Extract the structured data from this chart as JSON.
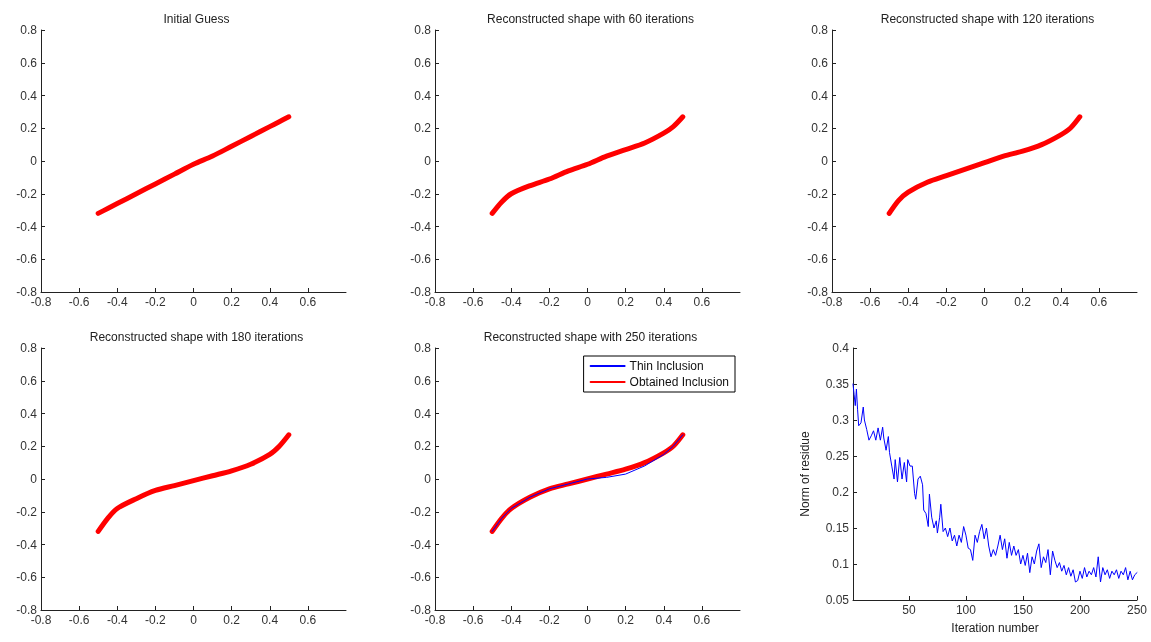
{
  "chart_data": [
    {
      "type": "line",
      "title": "Initial Guess",
      "xlim": [
        -0.8,
        0.8
      ],
      "xticks": [
        -0.8,
        -0.6,
        -0.4,
        -0.2,
        0,
        0.2,
        0.4,
        0.6
      ],
      "ylim": [
        -0.8,
        0.8
      ],
      "yticks": [
        -0.8,
        -0.6,
        -0.4,
        -0.2,
        0,
        0.2,
        0.4,
        0.6,
        0.8
      ],
      "marker": "none",
      "grid": false,
      "legend": false,
      "x": [
        -0.5,
        -0.45,
        -0.4,
        -0.3,
        -0.2,
        -0.1,
        0,
        0.1,
        0.2,
        0.3,
        0.4,
        0.45,
        0.5
      ],
      "series": [
        {
          "color": "#ff0000",
          "values": [
            -0.32,
            -0.29,
            -0.26,
            -0.2,
            -0.14,
            -0.08,
            -0.02,
            0.03,
            0.09,
            0.15,
            0.21,
            0.24,
            0.27
          ]
        }
      ]
    },
    {
      "type": "line",
      "title": "Reconstructed shape with 60 iterations",
      "xlim": [
        -0.8,
        0.8
      ],
      "xticks": [
        -0.8,
        -0.6,
        -0.4,
        -0.2,
        0,
        0.2,
        0.4,
        0.6
      ],
      "ylim": [
        -0.8,
        0.8
      ],
      "yticks": [
        -0.8,
        -0.6,
        -0.4,
        -0.2,
        0,
        0.2,
        0.4,
        0.6,
        0.8
      ],
      "marker": "none",
      "grid": false,
      "legend": false,
      "x": [
        -0.5,
        -0.45,
        -0.4,
        -0.3,
        -0.2,
        -0.1,
        0,
        0.1,
        0.2,
        0.3,
        0.4,
        0.45,
        0.5
      ],
      "series": [
        {
          "color": "#ff0000",
          "values": [
            -0.32,
            -0.25,
            -0.2,
            -0.15,
            -0.11,
            -0.06,
            -0.02,
            0.03,
            0.07,
            0.11,
            0.17,
            0.21,
            0.27
          ]
        }
      ]
    },
    {
      "type": "line",
      "title": "Reconstructed shape with 120 iterations",
      "xlim": [
        -0.8,
        0.8
      ],
      "xticks": [
        -0.8,
        -0.6,
        -0.4,
        -0.2,
        0,
        0.2,
        0.4,
        0.6
      ],
      "ylim": [
        -0.8,
        0.8
      ],
      "yticks": [
        -0.8,
        -0.6,
        -0.4,
        -0.2,
        0,
        0.2,
        0.4,
        0.6,
        0.8
      ],
      "marker": "none",
      "grid": false,
      "legend": false,
      "x": [
        -0.5,
        -0.45,
        -0.4,
        -0.3,
        -0.2,
        -0.1,
        0,
        0.1,
        0.2,
        0.3,
        0.4,
        0.45,
        0.5
      ],
      "series": [
        {
          "color": "#ff0000",
          "values": [
            -0.32,
            -0.24,
            -0.19,
            -0.13,
            -0.09,
            -0.05,
            -0.01,
            0.03,
            0.06,
            0.1,
            0.16,
            0.2,
            0.27
          ]
        }
      ]
    },
    {
      "type": "line",
      "title": "Reconstructed shape with 180 iterations",
      "xlim": [
        -0.8,
        0.8
      ],
      "xticks": [
        -0.8,
        -0.6,
        -0.4,
        -0.2,
        0,
        0.2,
        0.4,
        0.6
      ],
      "ylim": [
        -0.8,
        0.8
      ],
      "yticks": [
        -0.8,
        -0.6,
        -0.4,
        -0.2,
        0,
        0.2,
        0.4,
        0.6,
        0.8
      ],
      "marker": "none",
      "grid": false,
      "legend": false,
      "x": [
        -0.5,
        -0.45,
        -0.4,
        -0.3,
        -0.2,
        -0.1,
        0,
        0.1,
        0.2,
        0.3,
        0.4,
        0.45,
        0.5
      ],
      "series": [
        {
          "color": "#ff0000",
          "values": [
            -0.32,
            -0.24,
            -0.18,
            -0.12,
            -0.07,
            -0.04,
            -0.01,
            0.02,
            0.05,
            0.09,
            0.15,
            0.2,
            0.27
          ]
        }
      ]
    },
    {
      "type": "line",
      "title": "Reconstructed shape with 250 iterations",
      "xlim": [
        -0.8,
        0.8
      ],
      "xticks": [
        -0.8,
        -0.6,
        -0.4,
        -0.2,
        0,
        0.2,
        0.4,
        0.6
      ],
      "ylim": [
        -0.8,
        0.8
      ],
      "yticks": [
        -0.8,
        -0.6,
        -0.4,
        -0.2,
        0,
        0.2,
        0.4,
        0.6,
        0.8
      ],
      "marker": "none",
      "grid": false,
      "legend": "top right",
      "x": [
        -0.5,
        -0.45,
        -0.4,
        -0.3,
        -0.2,
        -0.1,
        0,
        0.1,
        0.2,
        0.3,
        0.4,
        0.45,
        0.5
      ],
      "series": [
        {
          "name": "Thin Inclusion",
          "color": "#0000ff",
          "values": [
            -0.32,
            -0.24,
            -0.18,
            -0.11,
            -0.06,
            -0.03,
            0,
            0.01,
            0.03,
            0.08,
            0.15,
            0.2,
            0.27
          ]
        },
        {
          "name": "Obtained Inclusion",
          "color": "#ff0000",
          "values": [
            -0.32,
            -0.24,
            -0.18,
            -0.11,
            -0.06,
            -0.03,
            0,
            0.03,
            0.06,
            0.1,
            0.16,
            0.2,
            0.27
          ]
        }
      ]
    },
    {
      "type": "line",
      "xlabel": "Iteration number",
      "ylabel": "Norm of residue",
      "xlim": [
        1,
        250
      ],
      "xticks": [
        50,
        100,
        150,
        200,
        250
      ],
      "ylim": [
        0.05,
        0.4
      ],
      "yticks": [
        0.05,
        0.1,
        0.15,
        0.2,
        0.25,
        0.3,
        0.35,
        0.4
      ],
      "marker": "none",
      "grid": false,
      "legend": false,
      "x": [
        1,
        2,
        3,
        4,
        5,
        6,
        8,
        10,
        11,
        13,
        15,
        17,
        19,
        21,
        23,
        25,
        27,
        28,
        30,
        32,
        33,
        35,
        37,
        38,
        40,
        42,
        44,
        46,
        48,
        49,
        51,
        53,
        55,
        56,
        58,
        60,
        62,
        63,
        65,
        67,
        68,
        70,
        72,
        74,
        75,
        77,
        78,
        80,
        82,
        84,
        86,
        88,
        90,
        92,
        94,
        96,
        98,
        100,
        102,
        104,
        106,
        108,
        110,
        112,
        114,
        116,
        118,
        120,
        122,
        124,
        126,
        128,
        130,
        132,
        134,
        136,
        138,
        140,
        142,
        144,
        146,
        148,
        150,
        152,
        154,
        156,
        158,
        160,
        162,
        164,
        166,
        168,
        170,
        172,
        174,
        176,
        178,
        180,
        182,
        184,
        186,
        188,
        190,
        192,
        194,
        196,
        198,
        200,
        202,
        204,
        206,
        208,
        210,
        212,
        214,
        216,
        218,
        220,
        222,
        224,
        226,
        228,
        230,
        232,
        234,
        236,
        238,
        240,
        242,
        244,
        246,
        248,
        250
      ],
      "series": [
        {
          "color": "#0000ff",
          "values": [
            0.35,
            0.335,
            0.32,
            0.343,
            0.315,
            0.292,
            0.296,
            0.318,
            0.3,
            0.287,
            0.272,
            0.278,
            0.285,
            0.272,
            0.289,
            0.272,
            0.29,
            0.275,
            0.258,
            0.277,
            0.255,
            0.236,
            0.218,
            0.245,
            0.214,
            0.248,
            0.218,
            0.241,
            0.214,
            0.245,
            0.236,
            0.236,
            0.198,
            0.19,
            0.218,
            0.222,
            0.21,
            0.175,
            0.17,
            0.152,
            0.197,
            0.165,
            0.15,
            0.16,
            0.143,
            0.165,
            0.183,
            0.145,
            0.15,
            0.138,
            0.15,
            0.132,
            0.14,
            0.125,
            0.14,
            0.13,
            0.152,
            0.14,
            0.122,
            0.12,
            0.105,
            0.14,
            0.13,
            0.145,
            0.155,
            0.135,
            0.15,
            0.125,
            0.11,
            0.12,
            0.112,
            0.125,
            0.14,
            0.12,
            0.135,
            0.108,
            0.13,
            0.112,
            0.125,
            0.112,
            0.12,
            0.1,
            0.112,
            0.098,
            0.115,
            0.088,
            0.11,
            0.1,
            0.118,
            0.128,
            0.095,
            0.11,
            0.102,
            0.12,
            0.085,
            0.118,
            0.105,
            0.095,
            0.102,
            0.09,
            0.098,
            0.085,
            0.095,
            0.083,
            0.092,
            0.075,
            0.077,
            0.09,
            0.08,
            0.095,
            0.082,
            0.09,
            0.085,
            0.095,
            0.082,
            0.11,
            0.075,
            0.095,
            0.085,
            0.092,
            0.08,
            0.09,
            0.085,
            0.092,
            0.08,
            0.09,
            0.085,
            0.095,
            0.078,
            0.09,
            0.078,
            0.085,
            0.088
          ]
        }
      ]
    }
  ]
}
